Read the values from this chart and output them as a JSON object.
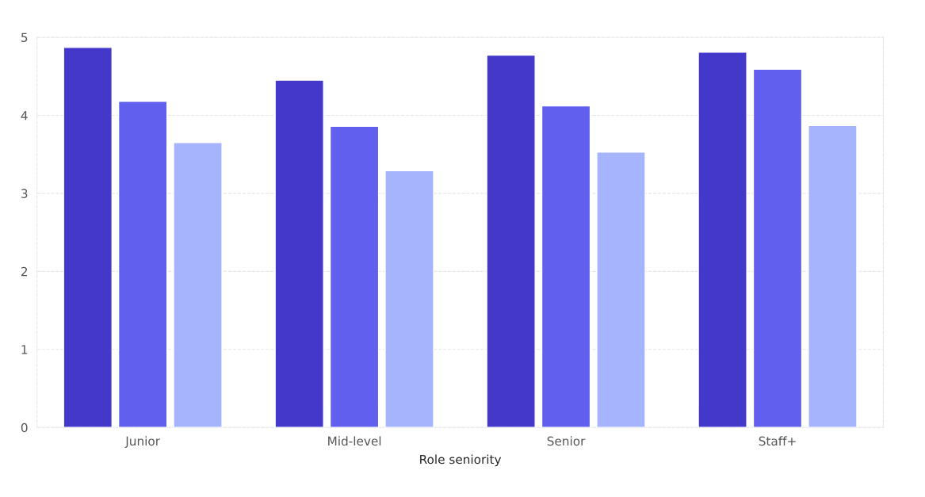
{
  "chart_data": {
    "type": "bar",
    "xlabel": "Role seniority",
    "categories": [
      "Junior",
      "Mid-level",
      "Senior",
      "Staff+"
    ],
    "series": [
      {
        "color": "#4338ca",
        "values": [
          4.87,
          4.45,
          4.77,
          4.81
        ]
      },
      {
        "color": "#6160ee",
        "values": [
          4.18,
          3.86,
          4.12,
          4.59
        ]
      },
      {
        "color": "#a5b4fc",
        "values": [
          3.65,
          3.29,
          3.53,
          3.87
        ]
      }
    ],
    "ylim": [
      0,
      5
    ],
    "yticks": [
      0,
      1,
      2,
      3,
      4,
      5
    ],
    "grid": "y"
  }
}
